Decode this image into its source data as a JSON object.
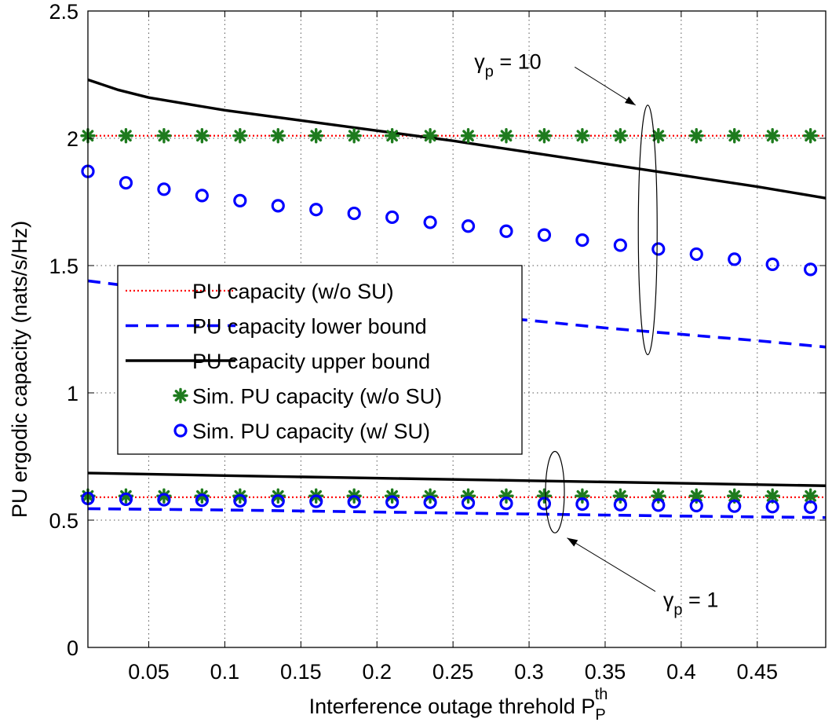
{
  "chart_data": {
    "type": "line",
    "xlabel": "Interference outage threhold P",
    "xlabel_sub": "P",
    "xlabel_sup": "th",
    "ylabel": "PU ergodic capacity (nats/s/Hz)",
    "xlim": [
      0.01,
      0.495
    ],
    "ylim": [
      0,
      2.5
    ],
    "xticks": [
      0.05,
      0.1,
      0.15,
      0.2,
      0.25,
      0.3,
      0.35,
      0.4,
      0.45
    ],
    "xtick_labels": [
      "0.05",
      "0.1",
      "0.15",
      "0.2",
      "0.25",
      "0.3",
      "0.35",
      "0.4",
      "0.45"
    ],
    "yticks": [
      0,
      0.5,
      1,
      1.5,
      2,
      2.5
    ],
    "ytick_labels": [
      "0",
      "0.5",
      "1",
      "1.5",
      "2",
      "2.5"
    ],
    "grid": true,
    "legend_position": "center-left",
    "sim_x": [
      0.01,
      0.035,
      0.06,
      0.085,
      0.11,
      0.135,
      0.16,
      0.185,
      0.21,
      0.235,
      0.26,
      0.285,
      0.31,
      0.335,
      0.36,
      0.385,
      0.41,
      0.435,
      0.46,
      0.485
    ],
    "series": [
      {
        "name": "PU capacity (w/o SU)",
        "style": "dotted",
        "color": "#ff0000",
        "curves": [
          {
            "x": [
              0.01,
              0.495
            ],
            "y": [
              2.01,
              2.01
            ]
          },
          {
            "x": [
              0.01,
              0.495
            ],
            "y": [
              0.59,
              0.59
            ]
          }
        ]
      },
      {
        "name": "PU capacity lower bound",
        "style": "dashed",
        "color": "#0000ff",
        "curves": [
          {
            "x": [
              0.01,
              0.05,
              0.1,
              0.15,
              0.2,
              0.25,
              0.3,
              0.35,
              0.4,
              0.45,
              0.495
            ],
            "y": [
              1.44,
              1.41,
              1.385,
              1.36,
              1.335,
              1.31,
              1.285,
              1.255,
              1.23,
              1.205,
              1.18
            ]
          },
          {
            "x": [
              0.01,
              0.1,
              0.2,
              0.3,
              0.4,
              0.495
            ],
            "y": [
              0.545,
              0.54,
              0.532,
              0.524,
              0.516,
              0.51
            ]
          }
        ]
      },
      {
        "name": "PU capacity upper bound",
        "style": "solid",
        "color": "#000000",
        "curves": [
          {
            "x": [
              0.01,
              0.03,
              0.05,
              0.1,
              0.15,
              0.2,
              0.25,
              0.3,
              0.35,
              0.4,
              0.45,
              0.495
            ],
            "y": [
              2.23,
              2.19,
              2.16,
              2.11,
              2.07,
              2.03,
              1.99,
              1.945,
              1.9,
              1.855,
              1.81,
              1.765
            ]
          },
          {
            "x": [
              0.01,
              0.1,
              0.2,
              0.3,
              0.4,
              0.495
            ],
            "y": [
              0.685,
              0.675,
              0.665,
              0.655,
              0.645,
              0.635
            ]
          }
        ]
      },
      {
        "name": "Sim. PU capacity (w/o SU)",
        "style": "marker-asterisk",
        "color": "#1e7b1e",
        "curves": [
          {
            "y": [
              2.01,
              2.01,
              2.01,
              2.01,
              2.01,
              2.01,
              2.01,
              2.01,
              2.01,
              2.01,
              2.01,
              2.01,
              2.01,
              2.01,
              2.01,
              2.01,
              2.01,
              2.01,
              2.01,
              2.01
            ]
          },
          {
            "y": [
              0.595,
              0.595,
              0.595,
              0.595,
              0.595,
              0.595,
              0.595,
              0.595,
              0.595,
              0.595,
              0.595,
              0.595,
              0.595,
              0.595,
              0.595,
              0.595,
              0.595,
              0.595,
              0.595,
              0.595
            ]
          }
        ]
      },
      {
        "name": "Sim. PU capacity (w/ SU)",
        "style": "marker-circle",
        "color": "#0000ff",
        "curves": [
          {
            "y": [
              1.87,
              1.825,
              1.8,
              1.775,
              1.755,
              1.735,
              1.72,
              1.705,
              1.69,
              1.67,
              1.655,
              1.635,
              1.62,
              1.6,
              1.58,
              1.565,
              1.545,
              1.525,
              1.505,
              1.485
            ]
          },
          {
            "y": [
              0.585,
              0.582,
              0.58,
              0.578,
              0.576,
              0.575,
              0.574,
              0.572,
              0.571,
              0.57,
              0.568,
              0.566,
              0.565,
              0.563,
              0.561,
              0.559,
              0.557,
              0.555,
              0.553,
              0.551
            ]
          }
        ]
      }
    ],
    "annotations": [
      {
        "text": "γ",
        "sub": "p",
        "rest": " = 10",
        "ellipse_x": 0.378,
        "ellipse_y": [
          1.15,
          2.13
        ],
        "arrow_to": [
          0.37,
          2.13
        ],
        "arrow_from": [
          0.33,
          2.28
        ]
      },
      {
        "text": "γ",
        "sub": "p",
        "rest": " = 1",
        "ellipse_x": 0.317,
        "ellipse_y": [
          0.45,
          0.77
        ],
        "arrow_to": [
          0.325,
          0.43
        ],
        "arrow_from": [
          0.383,
          0.22
        ]
      }
    ]
  }
}
